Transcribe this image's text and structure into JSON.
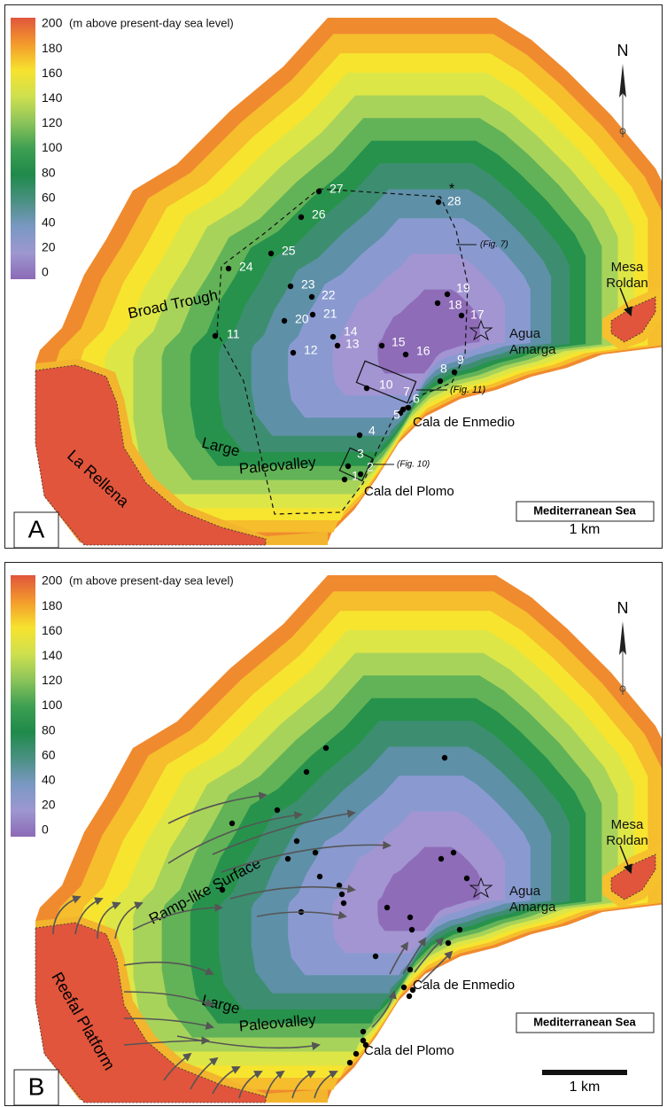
{
  "panels": [
    {
      "letter": "A",
      "legend": {
        "labels": [
          200,
          180,
          160,
          140,
          120,
          100,
          80,
          60,
          40,
          20,
          0
        ],
        "colors": [
          "#e0553c",
          "#f39a2c",
          "#f7e22e",
          "#cfe04e",
          "#8cc45a",
          "#3e9f52",
          "#1f8a4a",
          "#4a9082",
          "#7a98c3",
          "#9d97d0",
          "#8c6ab6"
        ],
        "unit": "(m above present-day sea level)"
      },
      "north": "N",
      "scale": "1 km",
      "sea": "Mediterranean Sea",
      "regions": [
        "Broad Trough",
        "La Rellena",
        "Large",
        "Paleovalley"
      ],
      "places": {
        "mesa": [
          "Mesa",
          "Roldan"
        ],
        "agua": [
          "Agua",
          "Amarga"
        ],
        "enmedio": "Cala de Enmedio",
        "plomo": "Cala del Plomo"
      },
      "points": [
        "1",
        "2",
        "3",
        "4",
        "5",
        "6",
        "7",
        "8",
        "9",
        "10",
        "11",
        "12",
        "13",
        "14",
        "15",
        "16",
        "17",
        "18",
        "19",
        "20",
        "21",
        "22",
        "23",
        "24",
        "25",
        "26",
        "27",
        "28"
      ],
      "asterisk": "*",
      "fig_refs": [
        "(Fig. 7)",
        "(Fig. 11)",
        "(Fig. 10)"
      ]
    },
    {
      "letter": "B",
      "legend": {
        "labels": [
          200,
          180,
          160,
          140,
          120,
          100,
          80,
          60,
          40,
          20,
          0
        ],
        "colors": [
          "#e0553c",
          "#f39a2c",
          "#f7e22e",
          "#cfe04e",
          "#8cc45a",
          "#3e9f52",
          "#1f8a4a",
          "#4a9082",
          "#7a98c3",
          "#9d97d0",
          "#8c6ab6"
        ],
        "unit": "(m above present-day sea level)"
      },
      "north": "N",
      "scale": "1 km",
      "sea": "Mediterranean Sea",
      "regions": [
        "Ramp-like Surface",
        "Reefal Platform",
        "Large",
        "Paleovalley"
      ],
      "places": {
        "mesa": [
          "Mesa",
          "Roldan"
        ],
        "agua": [
          "Agua",
          "Amarga"
        ],
        "enmedio": "Cala de Enmedio",
        "plomo": "Cala del Plomo"
      }
    }
  ]
}
